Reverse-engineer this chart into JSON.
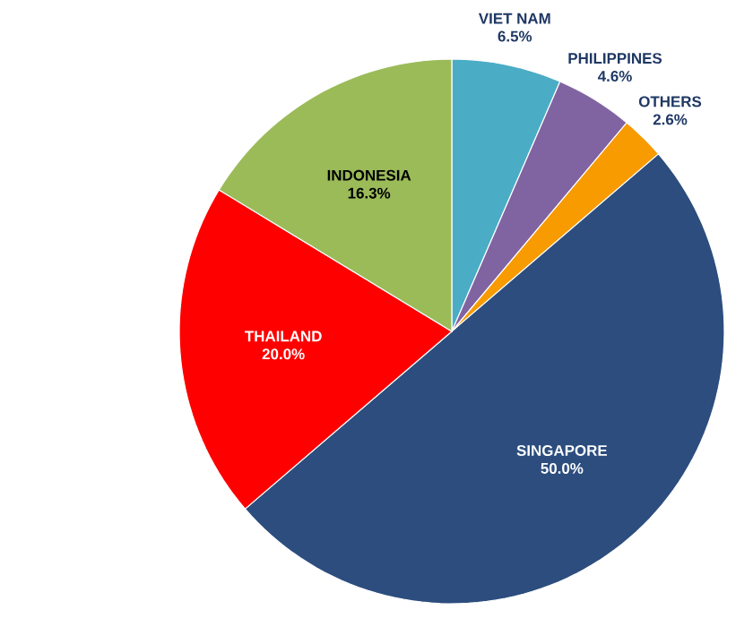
{
  "chart_data": {
    "type": "pie",
    "categories": [
      "VIET NAM",
      "PHILIPPINES",
      "OTHERS",
      "SINGAPORE",
      "THAILAND",
      "INDONESIA"
    ],
    "values": [
      6.5,
      4.6,
      2.6,
      50.0,
      20.0,
      16.3
    ],
    "value_labels": [
      "6.5%",
      "4.6%",
      "2.6%",
      "50.0%",
      "20.0%",
      "16.3%"
    ],
    "colors": [
      "#4bacc6",
      "#8064a2",
      "#f79b00",
      "#2c4d7e",
      "#ff0000",
      "#9bbb59"
    ]
  }
}
